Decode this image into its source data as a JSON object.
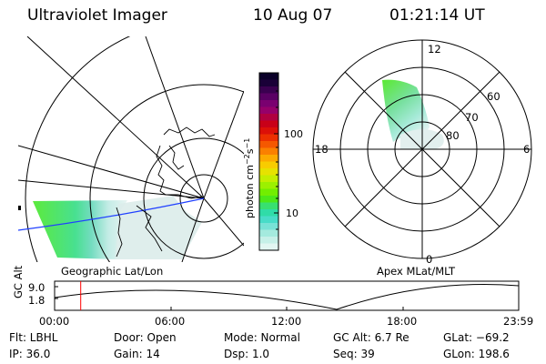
{
  "header": {
    "instrument": "Ultraviolet Imager",
    "date": "10 Aug 07",
    "time": "01:21:14 UT"
  },
  "geo_panel": {
    "label": "Geographic Lat/Lon"
  },
  "apex_panel": {
    "label": "Apex MLat/MLT",
    "mlt_labels": [
      "12",
      "18",
      "6",
      "0"
    ],
    "mlat_labels": [
      "60",
      "70",
      "80"
    ]
  },
  "colorbar": {
    "unit_label": "photon cm",
    "unit_exp1": "−2",
    "unit_mid": "s",
    "unit_exp2": "−1",
    "tick_labels": [
      "100",
      "10"
    ],
    "colors": [
      "#0a0028",
      "#1a0038",
      "#3a0050",
      "#5a0064",
      "#7a0070",
      "#96006a",
      "#b00040",
      "#c80018",
      "#dc1008",
      "#ec3000",
      "#f55800",
      "#fa8000",
      "#fcaa00",
      "#f8cc00",
      "#e6e200",
      "#c4ee00",
      "#9cf000",
      "#72ee00",
      "#4ce818",
      "#38e070",
      "#30dca8",
      "#48dcc8",
      "#78e2d6",
      "#a4eade",
      "#c6f0e8",
      "#e2f6f2"
    ]
  },
  "orbit_plot": {
    "y_axis_label": "GC Alt",
    "y_ticks": [
      "9.0",
      "1.8"
    ],
    "x_ticks": [
      "00:00",
      "06:00",
      "12:00",
      "18:00",
      "23:59"
    ],
    "marker_hour": 1.35
  },
  "status": {
    "filter": "Flt: LBHL",
    "ip": "IP: 36.0",
    "door": "Door: Open",
    "gain": "Gain: 14",
    "mode": "Mode: Normal",
    "dsp": "Dsp:    1.0",
    "gc_alt": "GC Alt: 6.7 Re",
    "seq": "Seq: 39",
    "glat": "GLat: −69.2",
    "glon": "GLon: 198.6"
  }
}
